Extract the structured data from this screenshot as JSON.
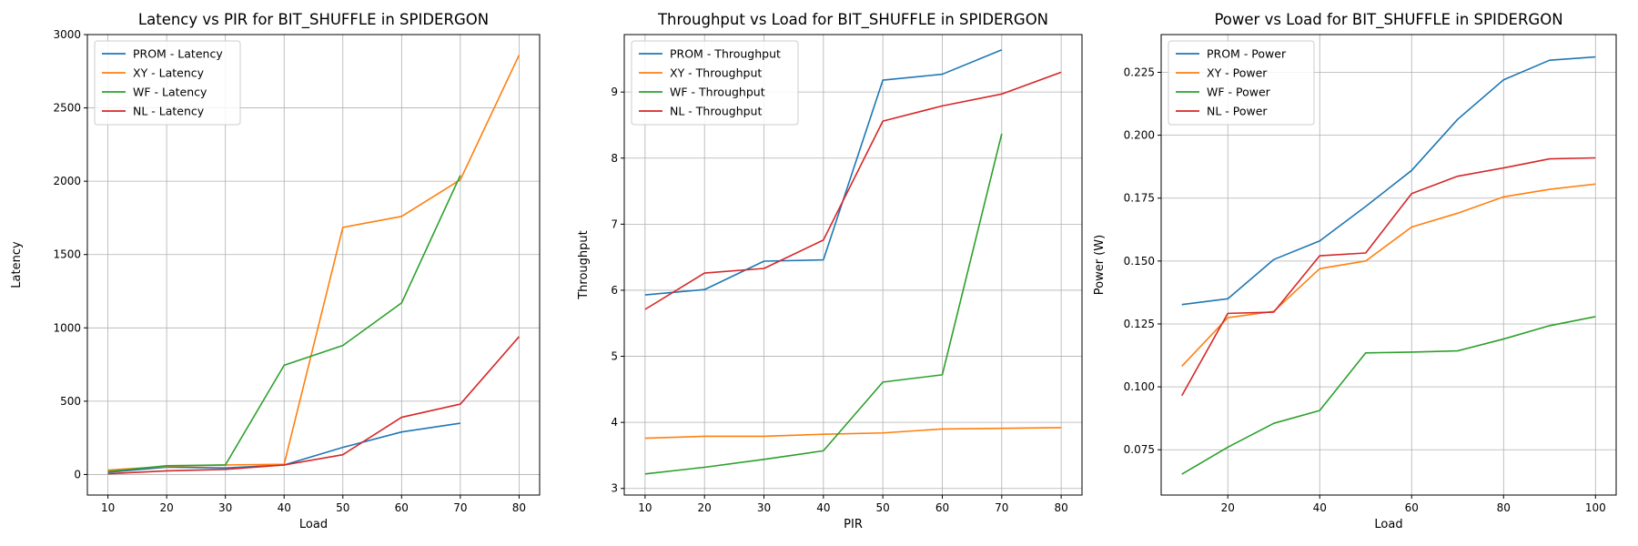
{
  "chart_data": [
    {
      "type": "line",
      "title": "Latency vs PIR for BIT_SHUFFLE in SPIDERGON",
      "xlabel": "Load",
      "ylabel": "Latency",
      "xlim": [
        6.5,
        83.5
      ],
      "ylim": [
        -140,
        3000
      ],
      "xticks": [
        10,
        20,
        30,
        40,
        50,
        60,
        70,
        80
      ],
      "yticks": [
        0,
        500,
        1000,
        1500,
        2000,
        2500,
        3000
      ],
      "grid": true,
      "legend_position": "top-left",
      "series": [
        {
          "name": "PROM - Latency",
          "color": "#1f77b4",
          "x": [
            10,
            20,
            30,
            40,
            50,
            60,
            70
          ],
          "y": [
            15,
            50,
            45,
            65,
            185,
            290,
            350
          ]
        },
        {
          "name": "XY - Latency",
          "color": "#ff7f0e",
          "x": [
            10,
            20,
            30,
            40,
            50,
            60,
            70,
            80
          ],
          "y": [
            30,
            55,
            65,
            70,
            1685,
            1760,
            2010,
            2860
          ]
        },
        {
          "name": "WF - Latency",
          "color": "#2ca02c",
          "x": [
            10,
            20,
            30,
            40,
            50,
            60,
            70
          ],
          "y": [
            20,
            60,
            65,
            745,
            880,
            1170,
            2040
          ]
        },
        {
          "name": "NL - Latency",
          "color": "#d62728",
          "x": [
            10,
            20,
            30,
            40,
            50,
            60,
            70,
            80
          ],
          "y": [
            5,
            25,
            35,
            65,
            135,
            390,
            480,
            940
          ]
        }
      ]
    },
    {
      "type": "line",
      "title": "Throughput vs Load for BIT_SHUFFLE in SPIDERGON",
      "xlabel": "PIR",
      "ylabel": "Throughput",
      "xlim": [
        6.5,
        83.5
      ],
      "ylim": [
        2.9,
        9.87
      ],
      "xticks": [
        10,
        20,
        30,
        40,
        50,
        60,
        70,
        80
      ],
      "yticks": [
        3,
        4,
        5,
        6,
        7,
        8,
        9
      ],
      "grid": true,
      "legend_position": "top-left",
      "series": [
        {
          "name": "PROM - Throughput",
          "color": "#1f77b4",
          "x": [
            10,
            20,
            30,
            40,
            50,
            60,
            70
          ],
          "y": [
            5.93,
            6.01,
            6.44,
            6.46,
            9.18,
            9.27,
            9.64
          ]
        },
        {
          "name": "XY - Throughput",
          "color": "#ff7f0e",
          "x": [
            10,
            20,
            30,
            40,
            50,
            60,
            70,
            80
          ],
          "y": [
            3.76,
            3.79,
            3.79,
            3.82,
            3.84,
            3.9,
            3.91,
            3.92
          ]
        },
        {
          "name": "WF - Throughput",
          "color": "#2ca02c",
          "x": [
            10,
            20,
            30,
            40,
            50,
            60,
            70
          ],
          "y": [
            3.22,
            3.32,
            3.44,
            3.57,
            4.61,
            4.72,
            8.37
          ]
        },
        {
          "name": "NL - Throughput",
          "color": "#d62728",
          "x": [
            10,
            20,
            30,
            40,
            50,
            60,
            70,
            80
          ],
          "y": [
            5.71,
            6.26,
            6.33,
            6.76,
            8.56,
            8.79,
            8.97,
            9.3
          ]
        }
      ]
    },
    {
      "type": "line",
      "title": "Power vs Load for BIT_SHUFFLE in SPIDERGON",
      "xlabel": "Load",
      "ylabel": "Power (W)",
      "xlim": [
        5.5,
        104.5
      ],
      "ylim": [
        0.057,
        0.24
      ],
      "xticks": [
        20,
        40,
        60,
        80,
        100
      ],
      "yticks": [
        0.075,
        0.1,
        0.125,
        0.15,
        0.175,
        0.2,
        0.225
      ],
      "ytick_labels": [
        "0.075",
        "0.100",
        "0.125",
        "0.150",
        "0.175",
        "0.200",
        "0.225"
      ],
      "grid": true,
      "legend_position": "top-left",
      "series": [
        {
          "name": "PROM - Power",
          "color": "#1f77b4",
          "x": [
            10,
            20,
            30,
            40,
            50,
            60,
            70,
            80,
            90,
            100
          ],
          "y": [
            0.1327,
            0.135,
            0.1506,
            0.158,
            0.1717,
            0.186,
            0.2063,
            0.222,
            0.2298,
            0.2311
          ]
        },
        {
          "name": "XY - Power",
          "color": "#ff7f0e",
          "x": [
            10,
            20,
            30,
            40,
            50,
            60,
            70,
            80,
            90,
            100
          ],
          "y": [
            0.1082,
            0.1275,
            0.13,
            0.147,
            0.15,
            0.1635,
            0.169,
            0.1755,
            0.1785,
            0.1806
          ]
        },
        {
          "name": "WF - Power",
          "color": "#2ca02c",
          "x": [
            10,
            20,
            30,
            40,
            50,
            60,
            70,
            80,
            90,
            100
          ],
          "y": [
            0.0653,
            0.076,
            0.0855,
            0.0906,
            0.1135,
            0.1138,
            0.1143,
            0.119,
            0.1243,
            0.1279
          ]
        },
        {
          "name": "NL - Power",
          "color": "#d62728",
          "x": [
            10,
            20,
            30,
            40,
            50,
            60,
            70,
            80,
            90,
            100
          ],
          "y": [
            0.0965,
            0.1292,
            0.1297,
            0.1521,
            0.1532,
            0.1768,
            0.1837,
            0.187,
            0.1906,
            0.191
          ]
        }
      ]
    }
  ]
}
